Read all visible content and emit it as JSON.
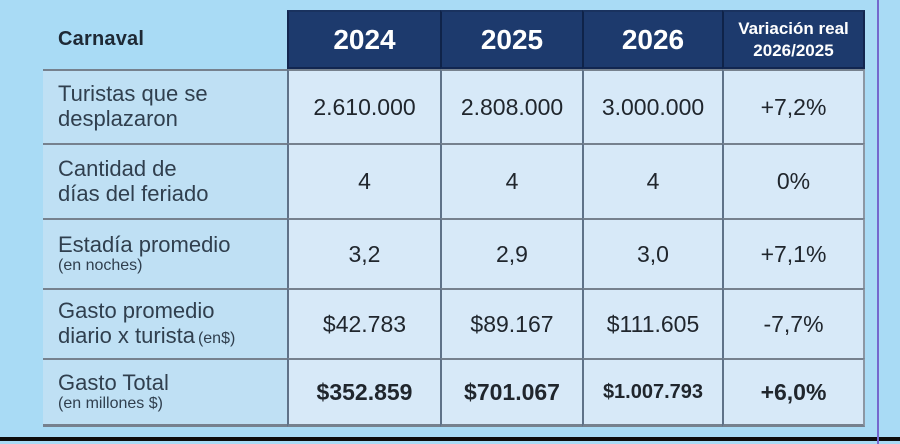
{
  "page": {
    "background": "#a9dbf5",
    "header_navy": "#1d3a6d",
    "grid_line": "#6a7585",
    "bottom_rule_color": "#0d0d0d",
    "right_edge_color": "#7468cd"
  },
  "table": {
    "corner_label": "Carnaval",
    "year_columns": [
      "2024",
      "2025",
      "2026"
    ],
    "variation_header": "Variación real\n2026/2025",
    "rows": [
      {
        "label": "Turistas que se\ndesplazaron",
        "note": "",
        "values": [
          "2.610.000",
          "2.808.000",
          "3.000.000",
          "+7,2%"
        ]
      },
      {
        "label": "Cantidad de\ndías del feriado",
        "note": "",
        "values": [
          "4",
          "4",
          "4",
          "0%"
        ]
      },
      {
        "label": "Estadía promedio",
        "note": "(en noches)",
        "values": [
          "3,2",
          "2,9",
          "3,0",
          "+7,1%"
        ]
      },
      {
        "label": "Gasto promedio\ndiario x turista",
        "note": "(en$)",
        "values": [
          "$42.783",
          "$89.167",
          "$111.605",
          "-7,7%"
        ]
      },
      {
        "label": "Gasto Total",
        "note": "(en millones $)",
        "values": [
          "$352.859",
          "$701.067",
          "$1.007.793",
          "+6,0%"
        ]
      }
    ]
  },
  "chart_data": {
    "type": "table",
    "title": "Carnaval",
    "columns": [
      "2024",
      "2025",
      "2026",
      "Variación real 2026/2025"
    ],
    "rows": [
      {
        "label": "Turistas que se desplazaron",
        "values": [
          "2.610.000",
          "2.808.000",
          "3.000.000",
          "+7,2%"
        ]
      },
      {
        "label": "Cantidad de días del feriado",
        "values": [
          "4",
          "4",
          "4",
          "0%"
        ]
      },
      {
        "label": "Estadía promedio (en noches)",
        "values": [
          "3,2",
          "2,9",
          "3,0",
          "+7,1%"
        ]
      },
      {
        "label": "Gasto promedio diario x turista (en$)",
        "values": [
          "$42.783",
          "$89.167",
          "$111.605",
          "-7,7%"
        ]
      },
      {
        "label": "Gasto Total (en millones $)",
        "values": [
          "$352.859",
          "$701.067",
          "$1.007.793",
          "+6,0%"
        ]
      }
    ]
  }
}
